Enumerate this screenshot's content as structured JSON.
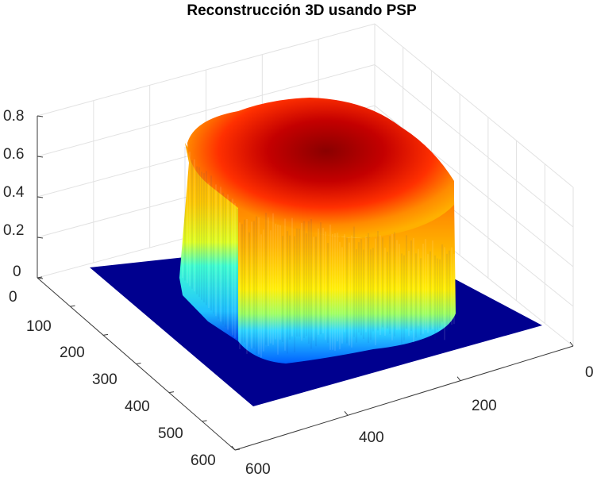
{
  "chart_data": {
    "type": "surface3d",
    "title": "Reconstrucción 3D usando PSP",
    "xlabel": "",
    "ylabel": "",
    "zlabel": "",
    "xlim": [
      0,
      600
    ],
    "ylim": [
      0,
      600
    ],
    "zlim": [
      0,
      0.8
    ],
    "x_ticks": [
      "0",
      "200",
      "400",
      "600"
    ],
    "y_ticks": [
      "0",
      "100",
      "200",
      "300",
      "400",
      "500",
      "600"
    ],
    "z_ticks": [
      "0",
      "0.2",
      "0.4",
      "0.6",
      "0.8"
    ],
    "grid": true,
    "colormap": "jet",
    "surface": {
      "base_height": 0.0,
      "object_x_range": [
        150,
        500
      ],
      "object_y_range": [
        140,
        430
      ],
      "object_max_height": 0.75,
      "object_wall_height_min": 0.45
    }
  }
}
